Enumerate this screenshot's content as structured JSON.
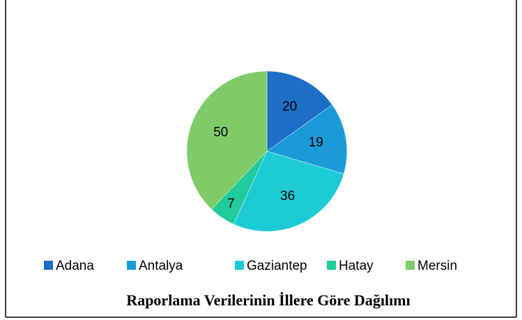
{
  "chart_data": {
    "type": "pie",
    "title": "Raporlama Verilerinin İllere Göre Dağılımı",
    "categories": [
      "Adana",
      "Antalya",
      "Gaziantep",
      "Hatay",
      "Mersin"
    ],
    "values": [
      20,
      19,
      36,
      7,
      50
    ],
    "colors": [
      "#1c6ec6",
      "#1a9bd7",
      "#1ccbd6",
      "#20cc9c",
      "#7fcb69"
    ],
    "legend": "bottom"
  }
}
